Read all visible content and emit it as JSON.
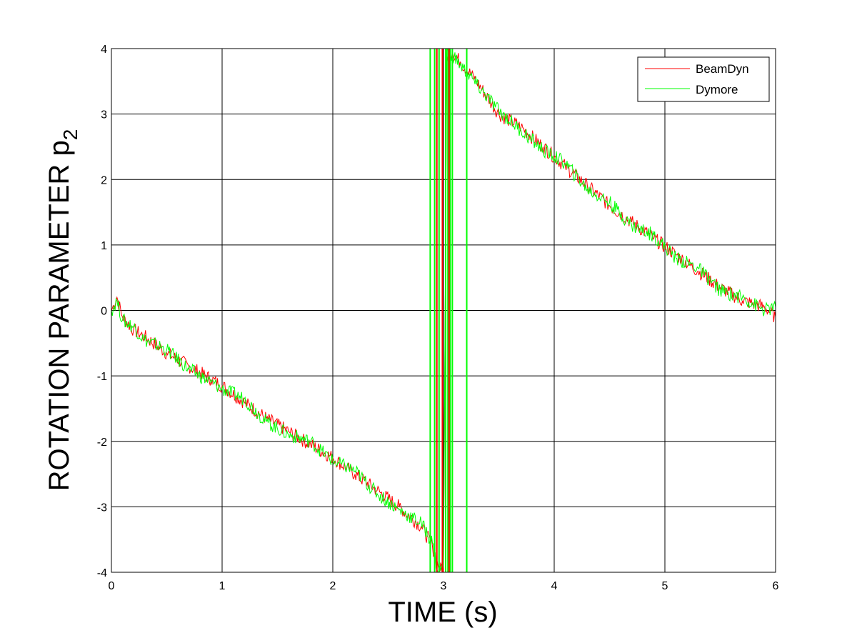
{
  "chart_data": {
    "type": "line",
    "xlabel": "TIME (s)",
    "ylabel": "ROTATION PARAMETER p",
    "ylabel_subscript": "2",
    "xlim": [
      0,
      6
    ],
    "ylim": [
      -4,
      4
    ],
    "xticks": [
      "0",
      "1",
      "2",
      "3",
      "4",
      "5",
      "6"
    ],
    "yticks": [
      "-4",
      "-3",
      "-2",
      "-1",
      "0",
      "1",
      "2",
      "3",
      "4"
    ],
    "grid": true,
    "legend_position": "top-right",
    "series": [
      {
        "name": "BeamDyn",
        "color": "#ff0000",
        "x": [
          0,
          0.05,
          0.1,
          0.2,
          0.3,
          0.5,
          0.7,
          0.9,
          1.0,
          1.2,
          1.4,
          1.6,
          1.8,
          2.0,
          2.2,
          2.4,
          2.6,
          2.8,
          2.9,
          2.95,
          3.0,
          3.03,
          3.05,
          3.08,
          3.15,
          3.3,
          3.5,
          3.7,
          3.9,
          4.1,
          4.3,
          4.5,
          4.7,
          4.9,
          5.1,
          5.3,
          5.5,
          5.7,
          5.9,
          6.0
        ],
        "y": [
          0,
          0.2,
          -0.1,
          -0.3,
          -0.4,
          -0.65,
          -0.85,
          -1.05,
          -1.15,
          -1.4,
          -1.65,
          -1.85,
          -2.05,
          -2.25,
          -2.5,
          -2.75,
          -3.0,
          -3.3,
          -3.6,
          -3.9,
          -4.0,
          3.8,
          3.9,
          3.95,
          3.8,
          3.5,
          3.0,
          2.8,
          2.5,
          2.2,
          1.9,
          1.6,
          1.35,
          1.1,
          0.85,
          0.6,
          0.35,
          0.15,
          0.05,
          -0.1
        ]
      },
      {
        "name": "Dymore",
        "color": "#00ff00",
        "x": [
          0,
          0.05,
          0.1,
          0.2,
          0.3,
          0.5,
          0.7,
          0.9,
          1.0,
          1.2,
          1.4,
          1.6,
          1.8,
          2.0,
          2.2,
          2.4,
          2.6,
          2.8,
          2.9,
          2.95,
          3.0,
          3.03,
          3.05,
          3.08,
          3.15,
          3.3,
          3.5,
          3.7,
          3.9,
          4.1,
          4.3,
          4.5,
          4.7,
          4.9,
          5.1,
          5.3,
          5.5,
          5.7,
          5.9,
          6.0
        ],
        "y": [
          0,
          0.15,
          -0.15,
          -0.25,
          -0.45,
          -0.6,
          -0.9,
          -1.1,
          -1.2,
          -1.35,
          -1.7,
          -1.9,
          -2.0,
          -2.3,
          -2.45,
          -2.8,
          -3.05,
          -3.25,
          -3.55,
          -4.0,
          -3.9,
          4.0,
          3.85,
          3.9,
          3.75,
          3.45,
          3.05,
          2.75,
          2.45,
          2.25,
          1.85,
          1.65,
          1.3,
          1.15,
          0.8,
          0.65,
          0.3,
          0.2,
          0.0,
          0.05
        ]
      }
    ],
    "vertical_spikes": [
      {
        "series": "Dymore",
        "x": [
          2.88,
          2.92,
          2.96,
          3.02,
          3.04,
          3.06,
          3.08,
          3.21
        ]
      },
      {
        "series": "BeamDyn",
        "x": [
          2.94,
          2.99,
          3.05
        ]
      }
    ]
  }
}
